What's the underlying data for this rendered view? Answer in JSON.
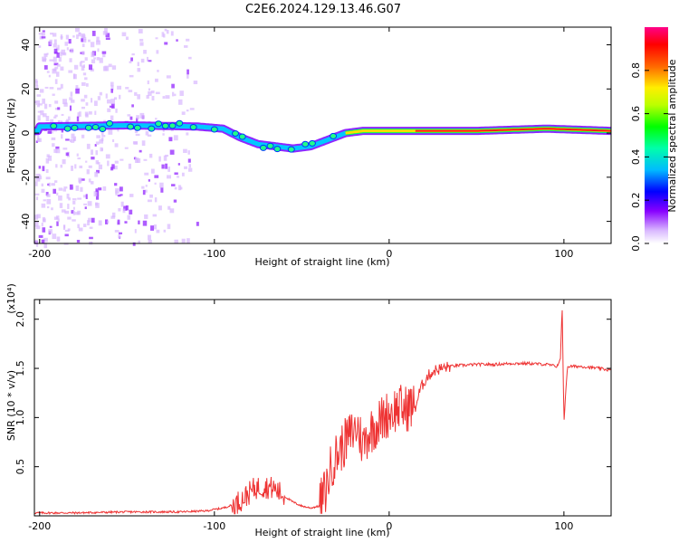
{
  "title": "C2E6.2024.129.13.46.G07",
  "chart_data": [
    {
      "type": "heatmap",
      "xlabel": "Height of straight line (km)",
      "ylabel": "Frequency (Hz)",
      "xlim": [
        -203,
        127
      ],
      "ylim": [
        -50,
        48
      ],
      "xticks": [
        -200,
        -100,
        0,
        100
      ],
      "yticks": [
        40,
        20,
        0,
        -20,
        -40
      ],
      "colorbar": {
        "label": "Normalized spectral amplitude",
        "range": [
          0.0,
          1.0
        ],
        "ticks": [
          0.0,
          0.2,
          0.4,
          0.6,
          0.8
        ],
        "tick_labels": [
          "0.0",
          "0.2",
          "0.4",
          "0.6",
          "0.8"
        ]
      },
      "ridge": {
        "description_points": [
          [
            -200,
            3
          ],
          [
            -150,
            3.5
          ],
          [
            -110,
            3
          ],
          [
            -95,
            2
          ],
          [
            -85,
            -2
          ],
          [
            -75,
            -5
          ],
          [
            -65,
            -6
          ],
          [
            -55,
            -7
          ],
          [
            -45,
            -6
          ],
          [
            -35,
            -3
          ],
          [
            -25,
            0
          ],
          [
            -15,
            1
          ],
          [
            0,
            1
          ],
          [
            20,
            1
          ],
          [
            50,
            1
          ],
          [
            90,
            2
          ],
          [
            127,
            1
          ]
        ]
      }
    },
    {
      "type": "line",
      "xlabel": "Height of straight line (km)",
      "ylabel": "SNR (10 * v/v)",
      "y_scale_label": "(x10⁴)",
      "xlim": [
        -203,
        127
      ],
      "ylim": [
        0,
        2.2
      ],
      "xticks": [
        -200,
        -100,
        0,
        100
      ],
      "yticks": [
        0.5,
        1.0,
        1.5,
        2.0
      ],
      "ytick_labels": [
        "0.5",
        "1.0",
        "1.5",
        "2.0"
      ],
      "series": [
        {
          "name": "SNR",
          "color": "#ee3333",
          "x": [
            -203,
            -180,
            -150,
            -120,
            -105,
            -95,
            -88,
            -82,
            -77,
            -72,
            -66,
            -60,
            -55,
            -50,
            -45,
            -40,
            -36,
            -33,
            -30,
            -27,
            -24,
            -21,
            -18,
            -15,
            -12,
            -9,
            -6,
            -3,
            0,
            3,
            6,
            9,
            12,
            15,
            18,
            22,
            26,
            30,
            35,
            40,
            50,
            60,
            70,
            80,
            90,
            96,
            98,
            99,
            100,
            102,
            110,
            120,
            127
          ],
          "values": [
            0.03,
            0.03,
            0.04,
            0.04,
            0.05,
            0.08,
            0.12,
            0.2,
            0.28,
            0.3,
            0.28,
            0.2,
            0.14,
            0.1,
            0.08,
            0.1,
            0.28,
            0.52,
            0.62,
            0.7,
            0.78,
            0.85,
            0.9,
            0.72,
            0.84,
            0.9,
            0.95,
            1.0,
            1.05,
            1.08,
            1.1,
            1.08,
            1.12,
            1.1,
            1.3,
            1.42,
            1.48,
            1.5,
            1.52,
            1.53,
            1.54,
            1.54,
            1.55,
            1.55,
            1.54,
            1.52,
            1.6,
            2.15,
            0.95,
            1.52,
            1.52,
            1.5,
            1.48
          ]
        }
      ]
    }
  ],
  "colors": {
    "axis": "#000000",
    "snr_line": "#ee3333",
    "background": "#ffffff"
  }
}
